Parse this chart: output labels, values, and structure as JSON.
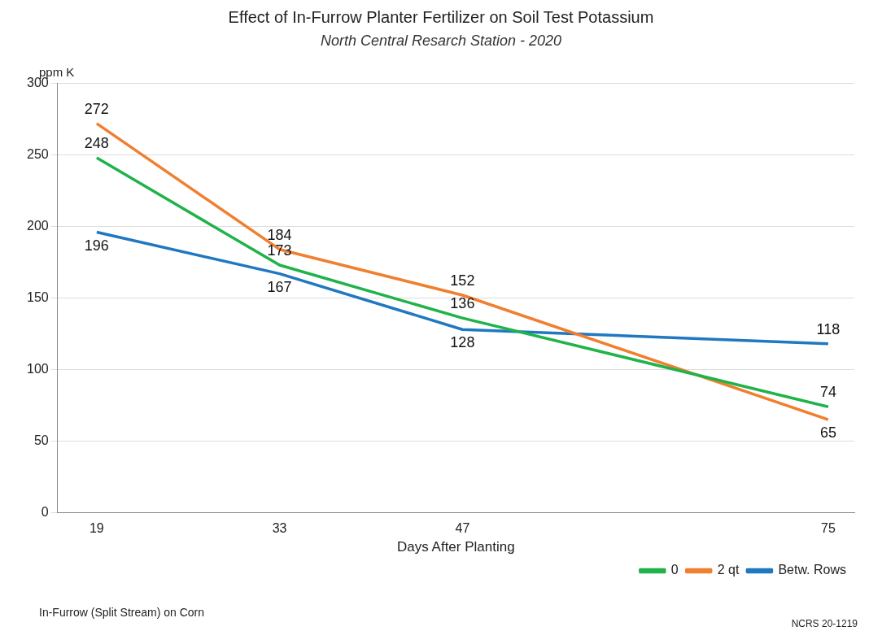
{
  "chart_data": {
    "type": "line",
    "title": "Effect of In-Furrow Planter Fertilizer on Soil Test Potassium",
    "subtitle": "North Central Resarch Station - 2020",
    "xlabel": "Days After Planting",
    "ylabel": "ppm K",
    "x": [
      19,
      33,
      47,
      75
    ],
    "xlim": [
      16,
      77
    ],
    "xticks": [
      19,
      33,
      47,
      75
    ],
    "ylim": [
      0,
      300
    ],
    "yticks": [
      0,
      50,
      100,
      150,
      200,
      250,
      300
    ],
    "series": [
      {
        "name": "0",
        "color": "#1fb34a",
        "values": [
          248,
          173,
          136,
          74
        ]
      },
      {
        "name": "2 qt",
        "color": "#f07f2f",
        "values": [
          272,
          184,
          152,
          65
        ]
      },
      {
        "name": "Betw. Rows",
        "color": "#1f78c1",
        "values": [
          196,
          167,
          128,
          118
        ]
      }
    ],
    "data_labels": true,
    "grid": "y",
    "legend": "bottom right",
    "marker": "none",
    "line_style": "solid",
    "annotations": [
      "In-Furrow (Split Stream) on Corn",
      "NCRS 20-1219"
    ]
  }
}
